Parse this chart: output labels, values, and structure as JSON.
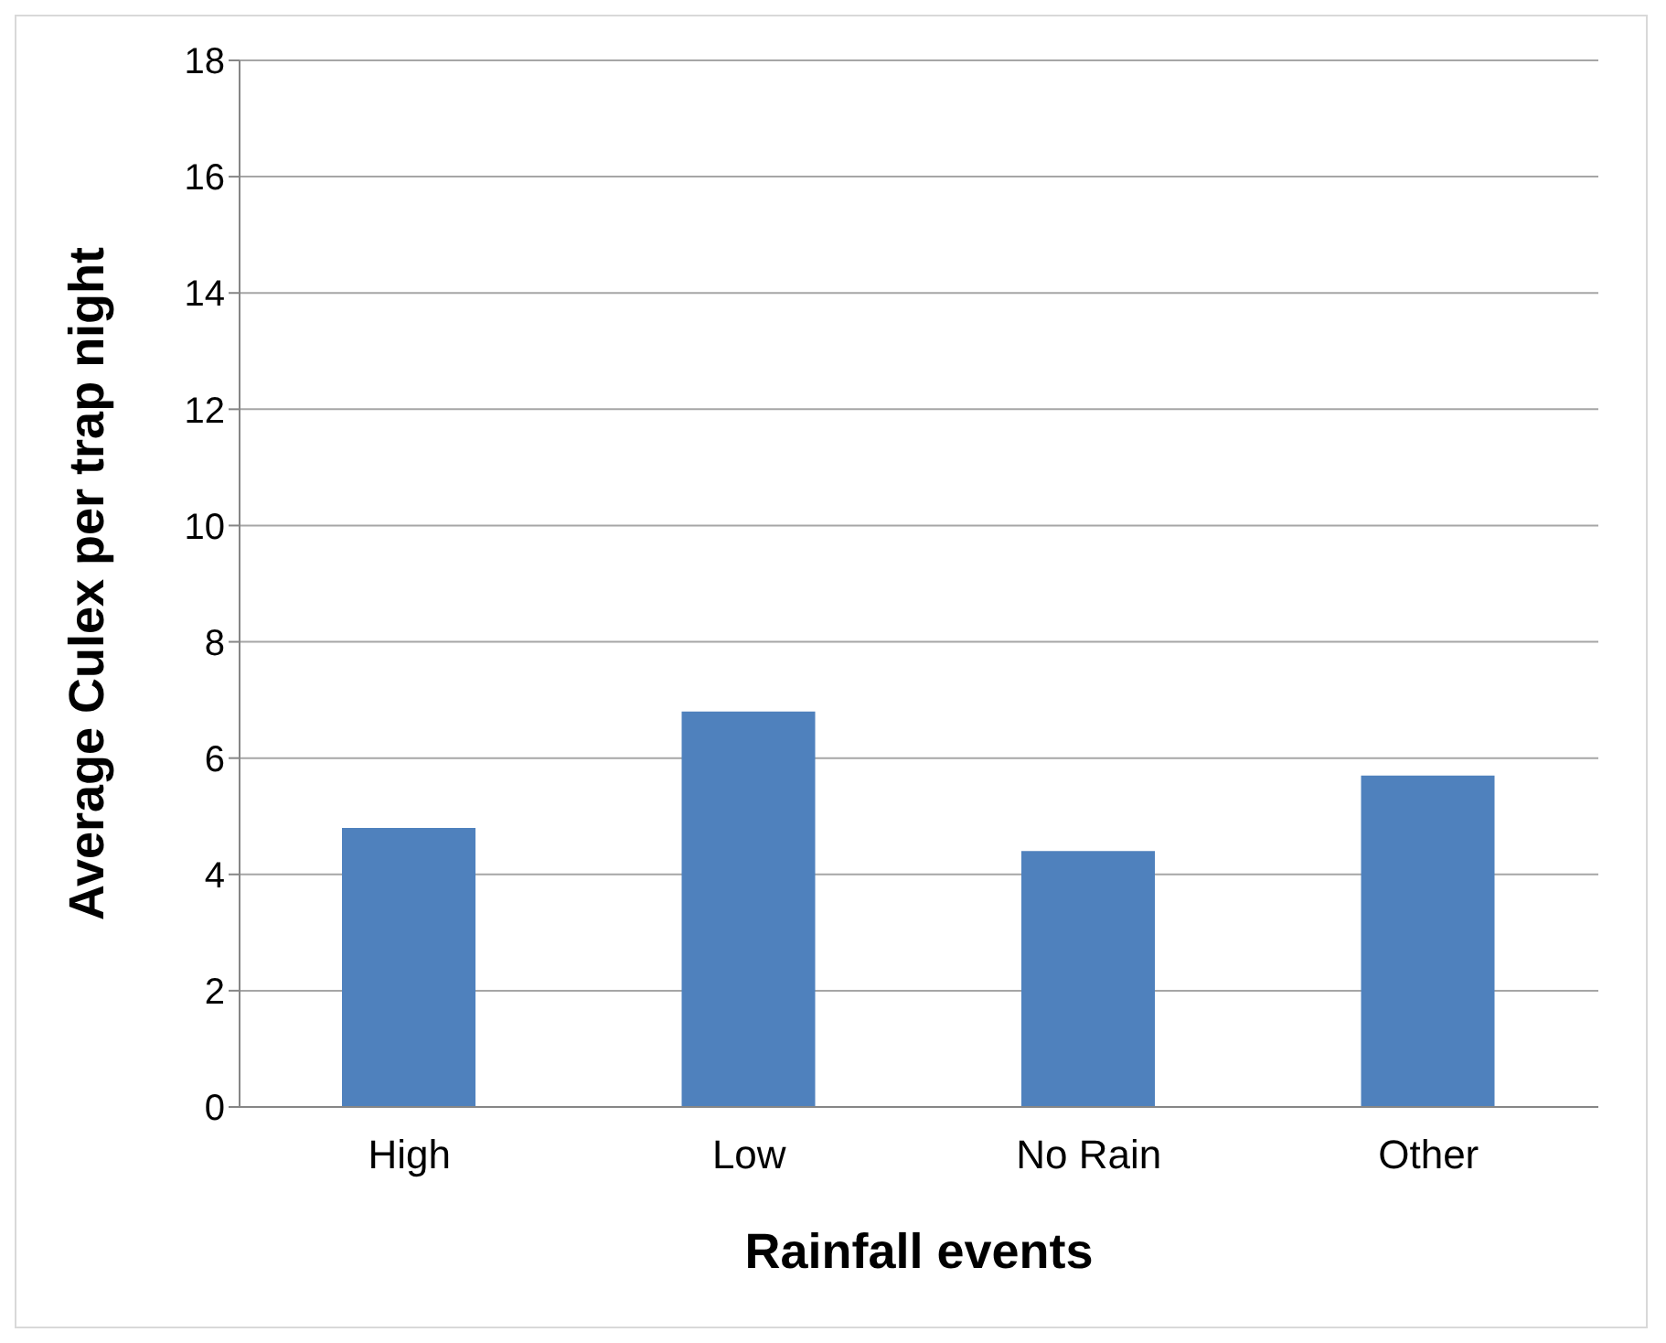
{
  "chart_data": {
    "type": "bar",
    "xlabel": "Rainfall events",
    "ylabel": "Average Culex per trap night",
    "categories": [
      "High",
      "Low",
      "No Rain",
      "Other"
    ],
    "values": [
      4.8,
      6.8,
      4.4,
      5.7
    ],
    "color": "#4f81bd",
    "ylim": [
      0,
      18
    ],
    "yticks": [
      0,
      2,
      4,
      6,
      8,
      10,
      12,
      14,
      16,
      18
    ],
    "grid": "y",
    "legend": false
  }
}
